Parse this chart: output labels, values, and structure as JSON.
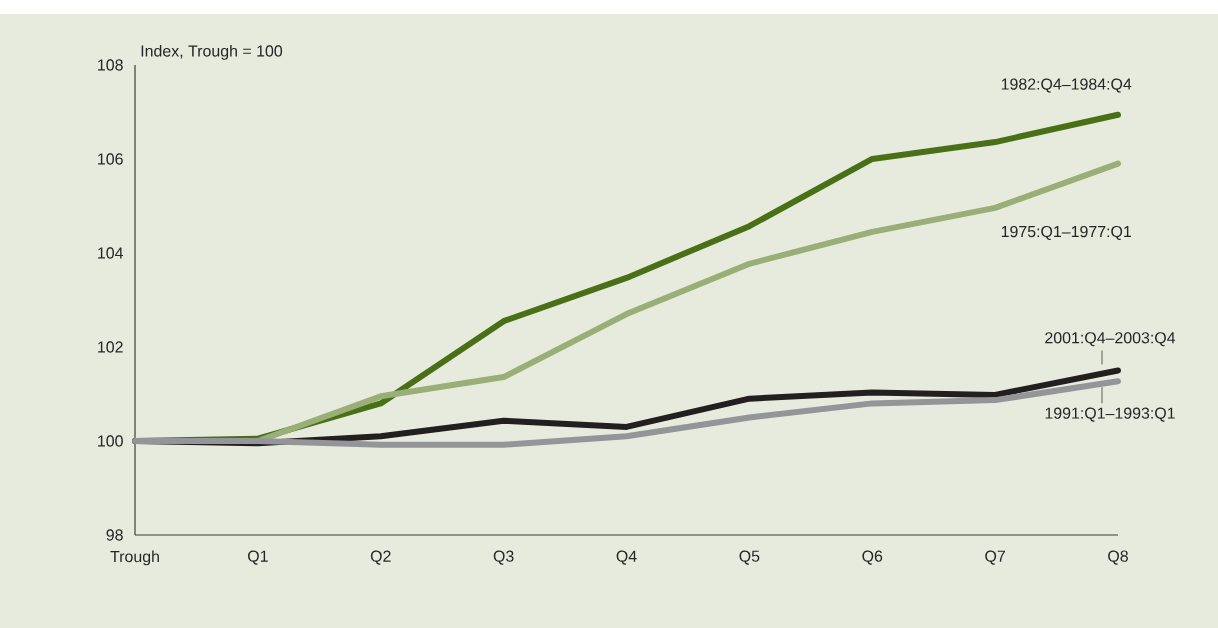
{
  "chart_data": {
    "type": "line",
    "ylabel": "Index, Trough = 100",
    "categories": [
      "Trough",
      "Q1",
      "Q2",
      "Q3",
      "Q4",
      "Q5",
      "Q6",
      "Q7",
      "Q8"
    ],
    "ylim": [
      98,
      108
    ],
    "yticks": [
      98,
      100,
      102,
      104,
      106,
      108
    ],
    "grid": false,
    "line_style": "solid",
    "series": [
      {
        "name": "1982:Q4–1984:Q4",
        "color": "#4a7017",
        "values": [
          100,
          100.05,
          100.8,
          102.55,
          103.47,
          104.57,
          106.0,
          106.36,
          106.94
        ]
      },
      {
        "name": "1975:Q1–1977:Q1",
        "color": "#9aae78",
        "values": [
          100,
          100.0,
          100.95,
          101.36,
          102.7,
          103.77,
          104.45,
          104.96,
          105.9
        ]
      },
      {
        "name": "2001:Q4–2003:Q4",
        "color": "#231f20",
        "values": [
          100,
          99.95,
          100.1,
          100.43,
          100.3,
          100.9,
          101.03,
          100.98,
          101.5
        ]
      },
      {
        "name": "1991:Q1–1993:Q1",
        "color": "#939598",
        "values": [
          100,
          100.0,
          99.92,
          99.92,
          100.1,
          100.5,
          100.8,
          100.87,
          101.27
        ]
      }
    ]
  }
}
